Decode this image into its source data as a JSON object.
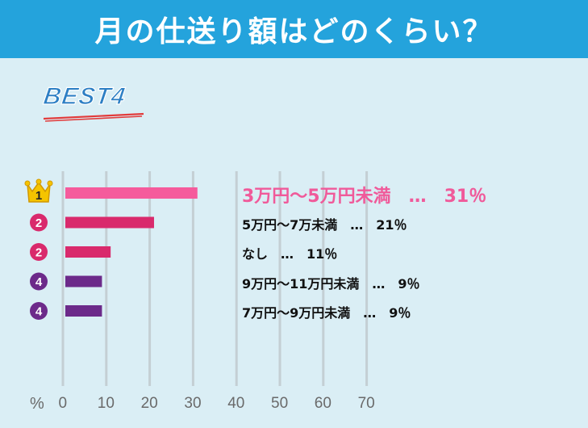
{
  "title": "月の仕送り額はどのくらい？",
  "badge": "BEST4",
  "colors": {
    "header": "#24a3dc",
    "background": "#daeef5",
    "top_bar": "#f55b9c",
    "pink": "#d92a6c",
    "purple": "#6c2a8a",
    "top_label": "#f05a9a",
    "crown": "#f5c400"
  },
  "chart_data": {
    "type": "bar",
    "orientation": "horizontal",
    "unit_label": "%",
    "xlim": [
      0,
      70
    ],
    "ticks": [
      0,
      10,
      20,
      30,
      40,
      50,
      60,
      70
    ],
    "grid": true,
    "bars": [
      {
        "rank": "1",
        "label": "3万円〜5万円未満　…　31％",
        "value": 31,
        "color": "#f55b9c",
        "icon": "crown-rank-icon"
      },
      {
        "rank": "2",
        "label": "5万円〜7万未満　…　21％",
        "value": 21,
        "color": "#d92a6c",
        "icon": "rank-badge-icon"
      },
      {
        "rank": "2",
        "label": "なし　…　11％",
        "value": 11,
        "color": "#d92a6c",
        "icon": "rank-badge-icon"
      },
      {
        "rank": "4",
        "label": "9万円〜11万円未満　…　9％",
        "value": 9,
        "color": "#6c2a8a",
        "icon": "rank-badge-icon"
      },
      {
        "rank": "4",
        "label": "7万円〜9万円未満　…　9％",
        "value": 9,
        "color": "#6c2a8a",
        "icon": "rank-badge-icon"
      }
    ]
  }
}
